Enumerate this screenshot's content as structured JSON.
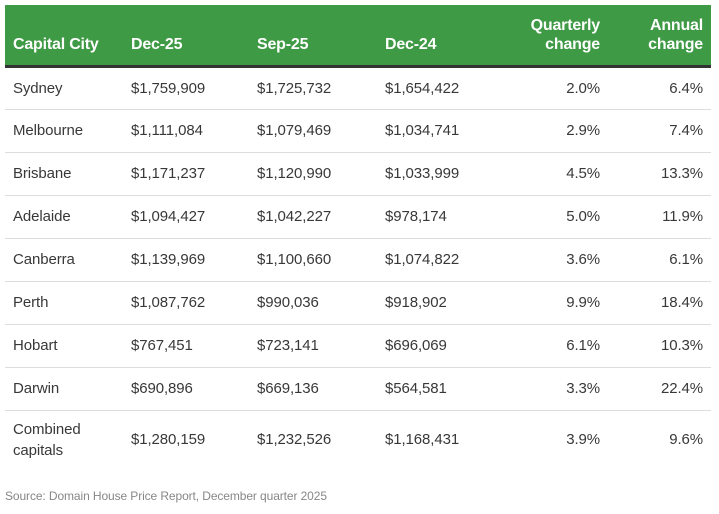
{
  "chart_data": {
    "type": "table",
    "title": "",
    "columns": [
      "Capital City",
      "Dec-25",
      "Sep-25",
      "Dec-24",
      "Quarterly change",
      "Annual change"
    ],
    "column_align": [
      "left",
      "left",
      "left",
      "left",
      "right",
      "right"
    ],
    "rows": [
      [
        "Sydney",
        "$1,759,909",
        "$1,725,732",
        "$1,654,422",
        "2.0%",
        "6.4%"
      ],
      [
        "Melbourne",
        "$1,111,084",
        "$1,079,469",
        "$1,034,741",
        "2.9%",
        "7.4%"
      ],
      [
        "Brisbane",
        "$1,171,237",
        "$1,120,990",
        "$1,033,999",
        "4.5%",
        "13.3%"
      ],
      [
        "Adelaide",
        "$1,094,427",
        "$1,042,227",
        "$978,174",
        "5.0%",
        "11.9%"
      ],
      [
        "Canberra",
        "$1,139,969",
        "$1,100,660",
        "$1,074,822",
        "3.6%",
        "6.1%"
      ],
      [
        "Perth",
        "$1,087,762",
        "$990,036",
        "$918,902",
        "9.9%",
        "18.4%"
      ],
      [
        "Hobart",
        "$767,451",
        "$723,141",
        "$696,069",
        "6.1%",
        "10.3%"
      ],
      [
        "Darwin",
        "$690,896",
        "$669,136",
        "$564,581",
        "3.3%",
        "22.4%"
      ],
      [
        "Combined capitals",
        "$1,280,159",
        "$1,232,526",
        "$1,168,431",
        "3.9%",
        "9.6%"
      ]
    ],
    "source": "Source: Domain House Price Report, December quarter 2025",
    "legend_position": "none",
    "grid": "horizontal-row-dividers"
  },
  "colors": {
    "header_bg": "#3f9a45",
    "header_text": "#ffffff",
    "header_border": "#333333",
    "row_divider": "#dddddd",
    "body_text": "#383838",
    "source_text": "#878787"
  }
}
